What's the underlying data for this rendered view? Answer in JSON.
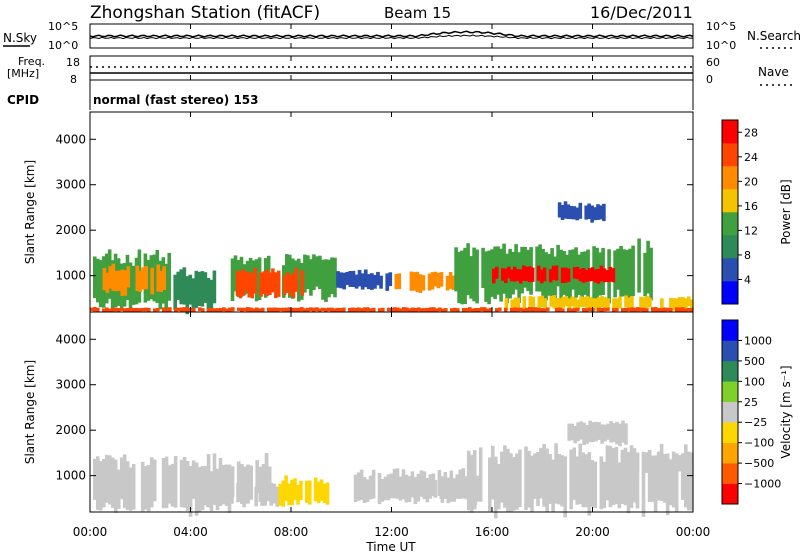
{
  "header": {
    "station": "Zhongshan Station (fitACF)",
    "beam": "Beam 15",
    "date": "16/Dec/2011"
  },
  "noise_panel": {
    "left_label": "N.Sky",
    "right_label": "N.Search",
    "y_ticks_left": [
      "10^5",
      "10^0"
    ],
    "y_ticks_right": [
      "10^5",
      "10^0"
    ]
  },
  "freq_panel": {
    "left_label_1": "Freq.",
    "left_label_2": "[MHz]",
    "left_ticks": [
      "18",
      "8"
    ],
    "right_label": "Nave",
    "right_ticks": [
      "60",
      "0"
    ]
  },
  "cpid_panel": {
    "label": "CPID",
    "mode": "normal (fast stereo) 153"
  },
  "power_panel": {
    "ylabel": "Slant Range [km]",
    "cbar_label": "Power [dB]"
  },
  "velocity_panel": {
    "ylabel": "Slant Range [km]",
    "cbar_label": "Velocity [m s⁻¹]"
  },
  "colors": {
    "power": [
      "#0000ff",
      "#2a4fb0",
      "#2e8b57",
      "#40a040",
      "#f5c400",
      "#ff8c00",
      "#ff4500",
      "#ff0000"
    ],
    "velocity": [
      "#ff0000",
      "#ff5a00",
      "#ffa500",
      "#ffd700",
      "#c8c8c8",
      "#7fd02a",
      "#2e8b57",
      "#2a4fb0",
      "#0000ff"
    ]
  },
  "chart_data": [
    {
      "type": "heatmap",
      "quantity": "power",
      "ylabel": "Slant Range [km]",
      "xlabel": "Time UT",
      "x_ticks": [
        "00:00",
        "04:00",
        "08:00",
        "12:00",
        "16:00",
        "20:00",
        "00:00"
      ],
      "y_ticks": [
        "1000",
        "2000",
        "3000",
        "4000"
      ],
      "ylim": [
        200,
        4600
      ],
      "xlim_hours": [
        0,
        24
      ],
      "colorbar": {
        "label": "Power [dB]",
        "ticks": [
          "4",
          "8",
          "12",
          "16",
          "20",
          "24",
          "28"
        ],
        "range": [
          0,
          30
        ]
      },
      "regions": [
        {
          "t0": 0.0,
          "t1": 3.2,
          "r0": 300,
          "r1": 1500,
          "level": 12
        },
        {
          "t0": 0.5,
          "t1": 3.0,
          "r0": 600,
          "r1": 1200,
          "level": 22
        },
        {
          "t0": 3.2,
          "t1": 5.0,
          "r0": 250,
          "r1": 1100,
          "level": 10
        },
        {
          "t0": 5.6,
          "t1": 9.8,
          "r0": 500,
          "r1": 1450,
          "level": 14
        },
        {
          "t0": 5.8,
          "t1": 8.5,
          "r0": 550,
          "r1": 1150,
          "level": 26
        },
        {
          "t0": 9.8,
          "t1": 12.0,
          "r0": 700,
          "r1": 1100,
          "level": 6
        },
        {
          "t0": 12.0,
          "t1": 15.0,
          "r0": 650,
          "r1": 1100,
          "level": 20
        },
        {
          "t0": 14.5,
          "t1": 22.5,
          "r0": 450,
          "r1": 1700,
          "level": 14
        },
        {
          "t0": 16.0,
          "t1": 21.0,
          "r0": 850,
          "r1": 1200,
          "level": 27
        },
        {
          "t0": 16.5,
          "t1": 24.0,
          "r0": 250,
          "r1": 550,
          "level": 18
        },
        {
          "t0": 18.5,
          "t1": 20.5,
          "r0": 2200,
          "r1": 2600,
          "level": 6
        },
        {
          "t0": 0.0,
          "t1": 24.0,
          "r0": 200,
          "r1": 300,
          "level": 26
        }
      ]
    },
    {
      "type": "heatmap",
      "quantity": "velocity",
      "ylabel": "Slant Range [km]",
      "xlabel": "Time UT",
      "x_ticks": [
        "00:00",
        "04:00",
        "08:00",
        "12:00",
        "16:00",
        "20:00",
        "00:00"
      ],
      "y_ticks": [
        "1000",
        "2000",
        "3000",
        "4000"
      ],
      "ylim": [
        200,
        4600
      ],
      "xlim_hours": [
        0,
        24
      ],
      "colorbar": {
        "label": "Velocity [m s⁻¹]",
        "ticks": [
          "1000",
          "500",
          "100",
          "25",
          "−25",
          "−100",
          "−500",
          "−1000"
        ],
        "range": [
          -1200,
          1200
        ]
      },
      "regions": [
        {
          "t0": 0.0,
          "t1": 5.6,
          "r0": 200,
          "r1": 1400,
          "level": 50
        },
        {
          "t0": 5.6,
          "t1": 7.2,
          "r0": 450,
          "r1": 1400,
          "level": 50
        },
        {
          "t0": 4.5,
          "t1": 7.5,
          "r0": 300,
          "r1": 850,
          "level": -60
        },
        {
          "t0": 7.5,
          "t1": 9.5,
          "r0": 350,
          "r1": 950,
          "level": -200
        },
        {
          "t0": 10.5,
          "t1": 15.5,
          "r0": 400,
          "r1": 1100,
          "level": 60
        },
        {
          "t0": 12.5,
          "t1": 14.5,
          "r0": 500,
          "r1": 900,
          "level": -40
        },
        {
          "t0": 15.0,
          "t1": 24.0,
          "r0": 200,
          "r1": 1600,
          "level": 70
        },
        {
          "t0": 19.0,
          "t1": 21.5,
          "r0": 1700,
          "r1": 2200,
          "level": 10
        },
        {
          "t0": 21.0,
          "t1": 24.0,
          "r0": 1000,
          "r1": 1500,
          "level": 10
        }
      ]
    }
  ]
}
